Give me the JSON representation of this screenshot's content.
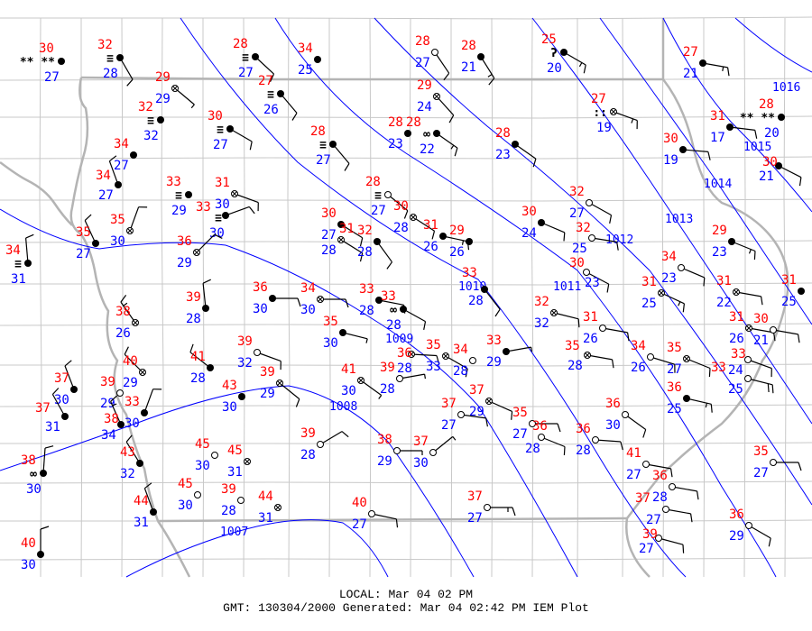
{
  "footer": {
    "local": "LOCAL: Mar 04 02 PM",
    "gmt": "GMT: 130304/2000 Generated: Mar 04 02:42 PM IEM Plot"
  },
  "colors": {
    "temperature": "#ff0000",
    "dewpoint": "#0000ff",
    "isobar": "#0000ff",
    "county_lines": "#c8c8c8",
    "state_lines": "#b4b4b4"
  },
  "isobars": [
    "1016",
    "1015",
    "1014",
    "1013",
    "1012",
    "1011",
    "1010",
    "1009",
    "1008",
    "1007"
  ],
  "stations": [
    {
      "t": "30",
      "d": "27",
      "sky": "overcast",
      "wx": "snow",
      "dir": 0,
      "spd": 0
    },
    {
      "t": "32",
      "d": "28",
      "sky": "overcast",
      "wx": "fog",
      "dir": 150,
      "spd": 10
    },
    {
      "t": "29",
      "d": "29",
      "sky": "missing",
      "wx": "",
      "dir": 130,
      "spd": 5
    },
    {
      "t": "32",
      "d": "32",
      "sky": "overcast",
      "wx": "fog",
      "dir": 0,
      "spd": 0
    },
    {
      "t": "34",
      "d": "27",
      "sky": "overcast",
      "wx": "",
      "dir": 0,
      "spd": 0
    },
    {
      "t": "34",
      "d": "27",
      "sky": "overcast",
      "wx": "",
      "dir": 340,
      "spd": 10
    },
    {
      "t": "33",
      "d": "29",
      "sky": "overcast",
      "wx": "fog",
      "dir": 0,
      "spd": 0
    },
    {
      "t": "31",
      "d": "30",
      "sky": "missing",
      "wx": "",
      "dir": 110,
      "spd": 10
    },
    {
      "t": "33",
      "d": "30",
      "sky": "overcast",
      "wx": "fog",
      "dir": 70,
      "spd": 10
    },
    {
      "t": "36",
      "d": "29",
      "sky": "missing",
      "wx": "",
      "dir": 45,
      "spd": 10
    },
    {
      "t": "35",
      "d": "27",
      "sky": "overcast",
      "wx": "",
      "dir": 335,
      "spd": 10
    },
    {
      "t": "34",
      "d": "31",
      "sky": "overcast",
      "wx": "fog",
      "dir": 355,
      "spd": 10
    },
    {
      "t": "35",
      "d": "30",
      "sky": "missing",
      "wx": "",
      "dir": 20,
      "spd": 10
    },
    {
      "t": "28",
      "d": "27",
      "sky": "overcast",
      "wx": "fog",
      "dir": 133,
      "spd": 10
    },
    {
      "t": "34",
      "d": "25",
      "sky": "overcast",
      "wx": "",
      "dir": 0,
      "spd": 0
    },
    {
      "t": "27",
      "d": "26",
      "sky": "overcast",
      "wx": "fog",
      "dir": 140,
      "spd": 10
    },
    {
      "t": "30",
      "d": "27",
      "sky": "overcast",
      "wx": "fog",
      "dir": 120,
      "spd": 10
    },
    {
      "t": "28",
      "d": "27",
      "sky": "overcast",
      "wx": "fog",
      "dir": 140,
      "spd": 10
    },
    {
      "t": "28",
      "d": "27",
      "sky": "clear",
      "wx": "",
      "dir": 146,
      "spd": 10
    },
    {
      "t": "28",
      "d": "21",
      "sky": "overcast",
      "wx": "",
      "dir": 148,
      "spd": 15
    },
    {
      "t": "25",
      "d": "20",
      "sky": "overcast",
      "wx": "drizzle",
      "dir": 120,
      "spd": 15
    },
    {
      "t": "29",
      "d": "24",
      "sky": "missing",
      "wx": "",
      "dir": 138,
      "spd": 10
    },
    {
      "t": "28",
      "d": "23",
      "sky": "overcast",
      "wx": "",
      "dir": 0,
      "spd": 0
    },
    {
      "t": "28",
      "d": "22",
      "sky": "overcast",
      "wx": "haze",
      "dir": 125,
      "spd": 15
    },
    {
      "t": "28",
      "d": "23",
      "sky": "overcast",
      "wx": "",
      "dir": 125,
      "spd": 10
    },
    {
      "t": "27",
      "d": "19",
      "sky": "missing",
      "wx": "rain",
      "dir": 110,
      "spd": 15
    },
    {
      "t": "27",
      "d": "21",
      "sky": "overcast",
      "wx": "",
      "dir": 100,
      "spd": 15
    },
    {
      "t": "31",
      "d": "17",
      "sky": "overcast",
      "wx": "",
      "dir": 97,
      "spd": 10
    },
    {
      "t": "28",
      "d": "20",
      "sky": "overcast",
      "wx": "snow",
      "dir": 0,
      "spd": 0
    },
    {
      "t": "30",
      "d": "19",
      "sky": "overcast",
      "wx": "",
      "dir": 95,
      "spd": 10
    },
    {
      "t": "30",
      "d": "21",
      "sky": "overcast",
      "wx": "",
      "dir": 117,
      "spd": 10
    },
    {
      "t": "28",
      "d": "27",
      "sky": "clear",
      "wx": "fog",
      "dir": 129,
      "spd": 10
    },
    {
      "t": "30",
      "d": "28",
      "sky": "missing",
      "wx": "",
      "dir": 123,
      "spd": 10
    },
    {
      "t": "30",
      "d": "27",
      "sky": "overcast",
      "wx": "",
      "dir": 122,
      "spd": 10
    },
    {
      "t": "31",
      "d": "28",
      "sky": "missing",
      "wx": "",
      "dir": 122,
      "spd": 10
    },
    {
      "t": "32",
      "d": "28",
      "sky": "overcast",
      "wx": "",
      "dir": 144,
      "spd": 10
    },
    {
      "t": "31",
      "d": "26",
      "sky": "overcast",
      "wx": "",
      "dir": 102,
      "spd": 15
    },
    {
      "t": "29",
      "d": "26",
      "sky": "overcast",
      "wx": "",
      "dir": 0,
      "spd": 0
    },
    {
      "t": "30",
      "d": "24",
      "sky": "overcast",
      "wx": "",
      "dir": 113,
      "spd": 10
    },
    {
      "t": "32",
      "d": "27",
      "sky": "clear",
      "wx": "",
      "dir": 119,
      "spd": 10
    },
    {
      "t": "32",
      "d": "25",
      "sky": "clear",
      "wx": "",
      "dir": 99,
      "spd": 10
    },
    {
      "t": "30",
      "d": "23",
      "sky": "clear",
      "wx": "",
      "dir": 118,
      "spd": 10
    },
    {
      "t": "29",
      "d": "23",
      "sky": "overcast",
      "wx": "",
      "dir": 112,
      "spd": 15
    },
    {
      "t": "34",
      "d": "23",
      "sky": "clear",
      "wx": "",
      "dir": 113,
      "spd": 10
    },
    {
      "t": "31",
      "d": "25",
      "sky": "missing",
      "wx": "",
      "dir": 115,
      "spd": 15
    },
    {
      "t": "31",
      "d": "22",
      "sky": "missing",
      "wx": "",
      "dir": 100,
      "spd": 10
    },
    {
      "t": "31",
      "d": "25",
      "sky": "overcast",
      "wx": "",
      "dir": 0,
      "spd": 0
    },
    {
      "t": "39",
      "d": "28",
      "sky": "overcast",
      "wx": "",
      "dir": 354,
      "spd": 10
    },
    {
      "t": "36",
      "d": "30",
      "sky": "overcast",
      "wx": "",
      "dir": 90,
      "spd": 10
    },
    {
      "t": "34",
      "d": "30",
      "sky": "missing",
      "wx": "",
      "dir": 90,
      "spd": 10
    },
    {
      "t": "33",
      "d": "28",
      "sky": "overcast",
      "wx": "",
      "dir": 101,
      "spd": 10
    },
    {
      "t": "33",
      "d": "28",
      "sky": "overcast",
      "wx": "haze",
      "dir": 119,
      "spd": 10
    },
    {
      "t": "33",
      "d": "28",
      "sky": "overcast",
      "wx": "",
      "dir": 142,
      "spd": 10
    },
    {
      "t": "32",
      "d": "32",
      "sky": "missing",
      "wx": "",
      "dir": 104,
      "spd": 10
    },
    {
      "t": "31",
      "d": "26",
      "sky": "clear",
      "wx": "",
      "dir": 100,
      "spd": 10
    },
    {
      "t": "31",
      "d": "26",
      "sky": "missing",
      "wx": "",
      "dir": 100,
      "spd": 10
    },
    {
      "t": "30",
      "d": "21",
      "sky": "clear",
      "wx": "",
      "dir": 100,
      "spd": 10
    },
    {
      "t": "35",
      "d": "30",
      "sky": "overcast",
      "wx": "",
      "dir": 104,
      "spd": 5
    },
    {
      "t": "38",
      "d": "26",
      "sky": "missing",
      "wx": "",
      "dir": 325,
      "spd": 15
    },
    {
      "t": "41",
      "d": "28",
      "sky": "overcast",
      "wx": "",
      "dir": 308,
      "spd": 10
    },
    {
      "t": "39",
      "d": "32",
      "sky": "clear",
      "wx": "",
      "dir": 110,
      "spd": 10
    },
    {
      "t": "39",
      "d": "29",
      "sky": "missing",
      "wx": "",
      "dir": 129,
      "spd": 10
    },
    {
      "t": "43",
      "d": "30",
      "sky": "overcast",
      "wx": "",
      "dir": 0,
      "spd": 0
    },
    {
      "t": "40",
      "d": "29",
      "sky": "missing",
      "wx": "",
      "dir": 315,
      "spd": 10
    },
    {
      "t": "37",
      "d": "30",
      "sky": "overcast",
      "wx": "",
      "dir": 339,
      "spd": 10
    },
    {
      "t": "37",
      "d": "31",
      "sky": "overcast",
      "wx": "",
      "dir": 331,
      "spd": 10
    },
    {
      "t": "39",
      "d": "29",
      "sky": "clear",
      "wx": "",
      "dir": 0,
      "spd": 0
    },
    {
      "t": "38",
      "d": "34",
      "sky": "overcast",
      "wx": "",
      "dir": 336,
      "spd": 15
    },
    {
      "t": "33",
      "d": "30",
      "sky": "overcast",
      "wx": "",
      "dir": 20,
      "spd": 10
    },
    {
      "t": "38",
      "d": "30",
      "sky": "overcast",
      "wx": "haze",
      "dir": 4,
      "spd": 10
    },
    {
      "t": "43",
      "d": "32",
      "sky": "overcast",
      "wx": "",
      "dir": 328,
      "spd": 10
    },
    {
      "t": "44",
      "d": "31",
      "sky": "overcast",
      "wx": "",
      "dir": 340,
      "spd": 10
    },
    {
      "t": "45",
      "d": "30",
      "sky": "clear",
      "wx": "",
      "dir": 0,
      "spd": 0
    },
    {
      "t": "45",
      "d": "31",
      "sky": "missing",
      "wx": "",
      "dir": 0,
      "spd": 0
    },
    {
      "t": "45",
      "d": "30",
      "sky": "clear",
      "wx": "",
      "dir": 0,
      "spd": 0
    },
    {
      "t": "39",
      "d": "28",
      "sky": "clear",
      "wx": "",
      "dir": 0,
      "spd": 0
    },
    {
      "t": "44",
      "d": "31",
      "sky": "missing",
      "wx": "",
      "dir": 0,
      "spd": 0
    },
    {
      "t": "39",
      "d": "28",
      "sky": "clear",
      "wx": "",
      "dir": 59,
      "spd": 10
    },
    {
      "t": "40",
      "d": "30",
      "sky": "overcast",
      "wx": "",
      "dir": 360,
      "spd": 10
    },
    {
      "t": "41",
      "d": "30",
      "sky": "missing",
      "wx": "",
      "dir": 126,
      "spd": 5
    },
    {
      "t": "39",
      "d": "28",
      "sky": "clear",
      "wx": "",
      "dir": 80,
      "spd": 5
    },
    {
      "t": "36",
      "d": "28",
      "sky": "missing",
      "wx": "",
      "dir": 93,
      "spd": 10
    },
    {
      "t": "35",
      "d": "33",
      "sky": "missing",
      "wx": "",
      "dir": 120,
      "spd": 10
    },
    {
      "t": "34",
      "d": "28",
      "sky": "clear",
      "wx": "",
      "dir": 0,
      "spd": 0
    },
    {
      "t": "33",
      "d": "29",
      "sky": "overcast",
      "wx": "",
      "dir": 80,
      "spd": 5
    },
    {
      "t": "37",
      "d": "29",
      "sky": "missing",
      "wx": "",
      "dir": 114,
      "spd": 10
    },
    {
      "t": "37",
      "d": "27",
      "sky": "clear",
      "wx": "",
      "dir": 98,
      "spd": 10
    },
    {
      "t": "35",
      "d": "27",
      "sky": "clear",
      "wx": "",
      "dir": 90,
      "spd": 10
    },
    {
      "t": "36",
      "d": "28",
      "sky": "clear",
      "wx": "",
      "dir": 112,
      "spd": 10
    },
    {
      "t": "36",
      "d": "28",
      "sky": "clear",
      "wx": "",
      "dir": 94,
      "spd": 10
    },
    {
      "t": "35",
      "d": "28",
      "sky": "missing",
      "wx": "",
      "dir": 100,
      "spd": 10
    },
    {
      "t": "34",
      "d": "26",
      "sky": "clear",
      "wx": "",
      "dir": 107,
      "spd": 10
    },
    {
      "t": "35",
      "d": "27",
      "sky": "missing",
      "wx": "",
      "dir": 112,
      "spd": 10
    },
    {
      "t": "36",
      "d": "25",
      "sky": "overcast",
      "wx": "",
      "dir": 103,
      "spd": 15
    },
    {
      "t": "33",
      "d": "24",
      "sky": "clear",
      "wx": "",
      "dir": 110,
      "spd": 10
    },
    {
      "t": "33",
      "d": "25",
      "sky": "clear",
      "wx": "",
      "dir": 104,
      "spd": 20
    },
    {
      "t": "36",
      "d": "30",
      "sky": "clear",
      "wx": "",
      "dir": 126,
      "spd": 10
    },
    {
      "t": "41",
      "d": "27",
      "sky": "clear",
      "wx": "",
      "dir": 100,
      "spd": 10
    },
    {
      "t": "36",
      "d": "28",
      "sky": "clear",
      "wx": "",
      "dir": 100,
      "spd": 10
    },
    {
      "t": "37",
      "d": "27",
      "sky": "clear",
      "wx": "",
      "dir": 100,
      "spd": 10
    },
    {
      "t": "39",
      "d": "27",
      "sky": "clear",
      "wx": "",
      "dir": 105,
      "spd": 10
    },
    {
      "t": "36",
      "d": "29",
      "sky": "clear",
      "wx": "",
      "dir": 120,
      "spd": 10
    },
    {
      "t": "35",
      "d": "27",
      "sky": "clear",
      "wx": "",
      "dir": 90,
      "spd": 10
    },
    {
      "t": "40",
      "d": "27",
      "sky": "clear",
      "wx": "",
      "dir": 102,
      "spd": 10
    },
    {
      "t": "37",
      "d": "27",
      "sky": "clear",
      "wx": "",
      "dir": 90,
      "spd": 15
    },
    {
      "t": "38",
      "d": "29",
      "sky": "clear",
      "wx": "",
      "dir": 90,
      "spd": 5
    },
    {
      "t": "37",
      "d": "30",
      "sky": "clear",
      "wx": "",
      "dir": 51,
      "spd": 5
    }
  ]
}
